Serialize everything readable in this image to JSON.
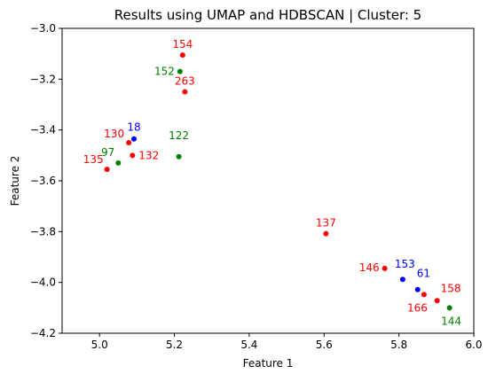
{
  "chart_data": {
    "type": "scatter",
    "title": "Results using UMAP and HDBSCAN | Cluster: 5",
    "xlabel": "Feature 1",
    "ylabel": "Feature 2",
    "xlim": [
      4.9,
      6.0
    ],
    "ylim": [
      -4.2,
      -3.0
    ],
    "xticks": [
      5.0,
      5.2,
      5.4,
      5.6,
      5.8,
      6.0
    ],
    "xtick_labels": [
      "5.0",
      "5.2",
      "5.4",
      "5.6",
      "5.8",
      "6.0"
    ],
    "yticks": [
      -3.0,
      -3.2,
      -3.4,
      -3.6,
      -3.8,
      -4.0,
      -4.2
    ],
    "ytick_labels": [
      "−3.0",
      "−3.2",
      "−3.4",
      "−3.6",
      "−3.8",
      "−4.0",
      "−4.2"
    ],
    "grid": false,
    "points": [
      {
        "label": "154",
        "x": 5.222,
        "y": -3.105,
        "color": "#ff0000"
      },
      {
        "label": "152",
        "x": 5.215,
        "y": -3.17,
        "color": "#008000"
      },
      {
        "label": "263",
        "x": 5.228,
        "y": -3.25,
        "color": "#ff0000"
      },
      {
        "label": "18",
        "x": 5.092,
        "y": -3.435,
        "color": "#0000ff"
      },
      {
        "label": "130",
        "x": 5.078,
        "y": -3.45,
        "color": "#ff0000"
      },
      {
        "label": "97",
        "x": 5.05,
        "y": -3.53,
        "color": "#008000"
      },
      {
        "label": "132",
        "x": 5.088,
        "y": -3.5,
        "color": "#ff0000"
      },
      {
        "label": "135",
        "x": 5.02,
        "y": -3.555,
        "color": "#ff0000"
      },
      {
        "label": "122",
        "x": 5.212,
        "y": -3.505,
        "color": "#008000"
      },
      {
        "label": "137",
        "x": 5.605,
        "y": -3.808,
        "color": "#ff0000"
      },
      {
        "label": "146",
        "x": 5.762,
        "y": -3.945,
        "color": "#ff0000"
      },
      {
        "label": "153",
        "x": 5.81,
        "y": -3.988,
        "color": "#0000ff"
      },
      {
        "label": "61",
        "x": 5.85,
        "y": -4.028,
        "color": "#0000ff"
      },
      {
        "label": "166",
        "x": 5.867,
        "y": -4.048,
        "color": "#ff0000"
      },
      {
        "label": "158",
        "x": 5.902,
        "y": -4.072,
        "color": "#ff0000"
      },
      {
        "label": "144",
        "x": 5.935,
        "y": -4.1,
        "color": "#008000"
      }
    ]
  }
}
